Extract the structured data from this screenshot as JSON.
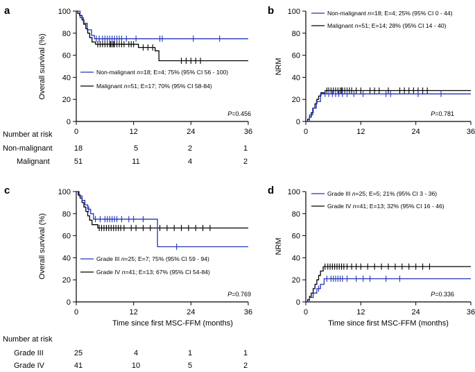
{
  "colors": {
    "blue": "#2233bb",
    "black": "#000000"
  },
  "chart_data": [
    {
      "type": "line",
      "panel": "a",
      "ylabel": "Overall survival (%)",
      "xlabel": "",
      "xticks": [
        0,
        12,
        24,
        36
      ],
      "yticks": [
        0,
        20,
        40,
        60,
        80,
        100
      ],
      "xlim": [
        0,
        36
      ],
      "ylim": [
        0,
        100
      ],
      "p_value_label": "P",
      "p_value_text": "=0.456",
      "legend_position": "middle-left",
      "series": [
        {
          "name": "Non-malignant",
          "color": "#2233bb",
          "legend": {
            "pre": "Non-malignant ",
            "n": "n",
            "post": "=18; E=4; 75% (95% CI 56 - 100)"
          },
          "steps": [
            [
              0,
              100
            ],
            [
              0.8,
              94
            ],
            [
              1.5,
              89
            ],
            [
              2.3,
              83
            ],
            [
              3.2,
              78
            ],
            [
              3.8,
              75
            ],
            [
              36,
              75
            ]
          ],
          "censors": [
            4.2,
            4.8,
            5.5,
            6.0,
            6.5,
            7.0,
            7.5,
            8.0,
            8.5,
            9.0,
            9.5,
            10.5,
            12.5,
            17.5,
            18.0,
            24.5,
            30.0
          ]
        },
        {
          "name": "Malignant",
          "color": "#000000",
          "legend": {
            "pre": "Malignant ",
            "n": "n",
            "post": "=51; E=17; 70% (95% CI 58-84)"
          },
          "steps": [
            [
              0,
              100
            ],
            [
              0.3,
              98
            ],
            [
              0.7,
              96
            ],
            [
              1.2,
              92
            ],
            [
              1.6,
              88
            ],
            [
              2.0,
              84
            ],
            [
              2.4,
              80
            ],
            [
              2.8,
              76
            ],
            [
              3.3,
              72
            ],
            [
              4.0,
              70
            ],
            [
              13.0,
              67
            ],
            [
              16.5,
              64
            ],
            [
              17.3,
              55
            ],
            [
              36,
              55
            ]
          ],
          "censors": [
            4.5,
            5.0,
            5.5,
            6.0,
            6.5,
            7.0,
            7.2,
            7.5,
            7.8,
            8.0,
            8.5,
            9.0,
            9.5,
            10.0,
            11.0,
            11.5,
            12.0,
            14.0,
            15.0,
            16.0,
            22.0,
            23.0,
            24.0,
            25.0,
            26.0
          ]
        }
      ],
      "at_risk": {
        "header": "Number at risk",
        "rows": [
          {
            "label": "Non-malignant",
            "values": [
              "18",
              "5",
              "2",
              "1"
            ]
          },
          {
            "label": "Malignant",
            "values": [
              "51",
              "11",
              "4",
              "2"
            ]
          }
        ]
      }
    },
    {
      "type": "line",
      "panel": "b",
      "ylabel": "NRM",
      "xlabel": "",
      "xticks": [
        0,
        12,
        24,
        36
      ],
      "yticks": [
        0,
        20,
        40,
        60,
        80,
        100
      ],
      "xlim": [
        0,
        36
      ],
      "ylim": [
        0,
        100
      ],
      "p_value_label": "P",
      "p_value_text": "=0.781",
      "legend_position": "top-left",
      "series": [
        {
          "name": "Non-malignant",
          "color": "#2233bb",
          "legend": {
            "pre": "Non-malignant ",
            "n": "n",
            "post": "=18; E=4; 25% (95% CI 0 - 44)"
          },
          "steps": [
            [
              0,
              0
            ],
            [
              0.8,
              6
            ],
            [
              1.5,
              12
            ],
            [
              2.3,
              18
            ],
            [
              3.2,
              25
            ],
            [
              36,
              25
            ]
          ],
          "censors": [
            4.2,
            5.0,
            5.8,
            6.5,
            7.2,
            8.0,
            9.0,
            10.5,
            12.5,
            17.5,
            18.5,
            24.5,
            29.5
          ]
        },
        {
          "name": "Malignant",
          "color": "#000000",
          "legend": {
            "pre": "Malignant ",
            "n": "n",
            "post": "=51; E=14; 28% (95% CI 14 - 40)"
          },
          "steps": [
            [
              0,
              0
            ],
            [
              0.4,
              2
            ],
            [
              0.8,
              4
            ],
            [
              1.2,
              8
            ],
            [
              1.6,
              12
            ],
            [
              2.0,
              16
            ],
            [
              2.4,
              20
            ],
            [
              2.8,
              23
            ],
            [
              3.3,
              26
            ],
            [
              4.2,
              28
            ],
            [
              36,
              28
            ]
          ],
          "censors": [
            4.6,
            5.0,
            5.5,
            6.0,
            6.5,
            7.0,
            7.5,
            7.8,
            8.0,
            8.5,
            9.0,
            9.5,
            10.0,
            11.0,
            12.0,
            14.0,
            15.0,
            16.0,
            18.0,
            20.5,
            21.5,
            22.5,
            23.5,
            24.5,
            25.5,
            26.5
          ]
        }
      ]
    },
    {
      "type": "line",
      "panel": "c",
      "ylabel": "Overall survival (%)",
      "xlabel": "Time since first MSC-FFM (months)",
      "xticks": [
        0,
        12,
        24,
        36
      ],
      "yticks": [
        0,
        20,
        40,
        60,
        80,
        100
      ],
      "xlim": [
        0,
        36
      ],
      "ylim": [
        0,
        100
      ],
      "p_value_label": "P",
      "p_value_text": "=0.769",
      "legend_position": "middle-left",
      "series": [
        {
          "name": "Grade III",
          "color": "#2233bb",
          "legend": {
            "pre": "Grade III ",
            "n": "n",
            "post": "=25; E=7; 75% (95% CI 59 - 94)"
          },
          "steps": [
            [
              0,
              100
            ],
            [
              0.6,
              96
            ],
            [
              1.2,
              92
            ],
            [
              1.8,
              88
            ],
            [
              2.4,
              84
            ],
            [
              3.0,
              80
            ],
            [
              3.6,
              75
            ],
            [
              16.8,
              75
            ],
            [
              17.0,
              50
            ],
            [
              36,
              50
            ]
          ],
          "censors": [
            2.6,
            4.0,
            5.0,
            6.0,
            6.5,
            7.0,
            7.5,
            8.0,
            8.5,
            9.5,
            11.0,
            12.0,
            14.0,
            21.0
          ]
        },
        {
          "name": "Grade IV",
          "color": "#000000",
          "legend": {
            "pre": "Grade IV ",
            "n": "n",
            "post": "=41; E=13; 67% (95% CI 54-84)"
          },
          "steps": [
            [
              0,
              100
            ],
            [
              0.4,
              97
            ],
            [
              0.8,
              94
            ],
            [
              1.2,
              90
            ],
            [
              1.6,
              86
            ],
            [
              2.0,
              82
            ],
            [
              2.4,
              78
            ],
            [
              2.8,
              74
            ],
            [
              3.3,
              70
            ],
            [
              4.5,
              67
            ],
            [
              36,
              67
            ]
          ],
          "censors": [
            4.8,
            5.3,
            5.8,
            6.3,
            6.8,
            7.3,
            7.8,
            8.3,
            8.8,
            9.3,
            10.0,
            11.5,
            12.5,
            14.0,
            15.5,
            17.5,
            19.0,
            20.5,
            22.0,
            23.5,
            25.0,
            26.5,
            28.0
          ]
        }
      ],
      "at_risk": {
        "header": "Number at risk",
        "rows": [
          {
            "label": "Grade III",
            "values": [
              "25",
              "4",
              "1",
              "1"
            ]
          },
          {
            "label": "Grade IV",
            "values": [
              "41",
              "10",
              "5",
              "2"
            ]
          }
        ]
      }
    },
    {
      "type": "line",
      "panel": "d",
      "ylabel": "NRM",
      "xlabel": "Time since first MSC-FFM (months)",
      "xticks": [
        0,
        12,
        24,
        36
      ],
      "yticks": [
        0,
        20,
        40,
        60,
        80,
        100
      ],
      "xlim": [
        0,
        36
      ],
      "ylim": [
        0,
        100
      ],
      "p_value_label": "P",
      "p_value_text": "=0.336",
      "legend_position": "top-left",
      "series": [
        {
          "name": "Grade III",
          "color": "#2233bb",
          "legend": {
            "pre": "Grade III ",
            "n": "n",
            "post": "=25; E=5; 21% (95% CI 3 - 36)"
          },
          "steps": [
            [
              0,
              0
            ],
            [
              0.8,
              4
            ],
            [
              1.6,
              8
            ],
            [
              2.4,
              12
            ],
            [
              3.2,
              16
            ],
            [
              4.0,
              21
            ],
            [
              36,
              21
            ]
          ],
          "censors": [
            2.8,
            4.6,
            5.5,
            6.0,
            6.5,
            7.0,
            7.5,
            8.0,
            9.0,
            11.0,
            12.5,
            14.0,
            17.5,
            20.5
          ]
        },
        {
          "name": "Grade IV",
          "color": "#000000",
          "legend": {
            "pre": "Grade IV ",
            "n": "n",
            "post": "=41; E=13; 32% (95% CI 16 - 46)"
          },
          "steps": [
            [
              0,
              0
            ],
            [
              0.4,
              2
            ],
            [
              0.8,
              5
            ],
            [
              1.2,
              8
            ],
            [
              1.6,
              12
            ],
            [
              2.0,
              16
            ],
            [
              2.4,
              20
            ],
            [
              2.8,
              24
            ],
            [
              3.2,
              28
            ],
            [
              3.8,
              32
            ],
            [
              36,
              32
            ]
          ],
          "censors": [
            4.2,
            4.8,
            5.3,
            5.8,
            6.3,
            6.8,
            7.3,
            7.8,
            8.3,
            9.0,
            10.0,
            11.0,
            12.0,
            13.5,
            15.0,
            16.5,
            18.0,
            19.5,
            21.0,
            22.5,
            24.0,
            25.5,
            27.0
          ]
        }
      ]
    }
  ]
}
